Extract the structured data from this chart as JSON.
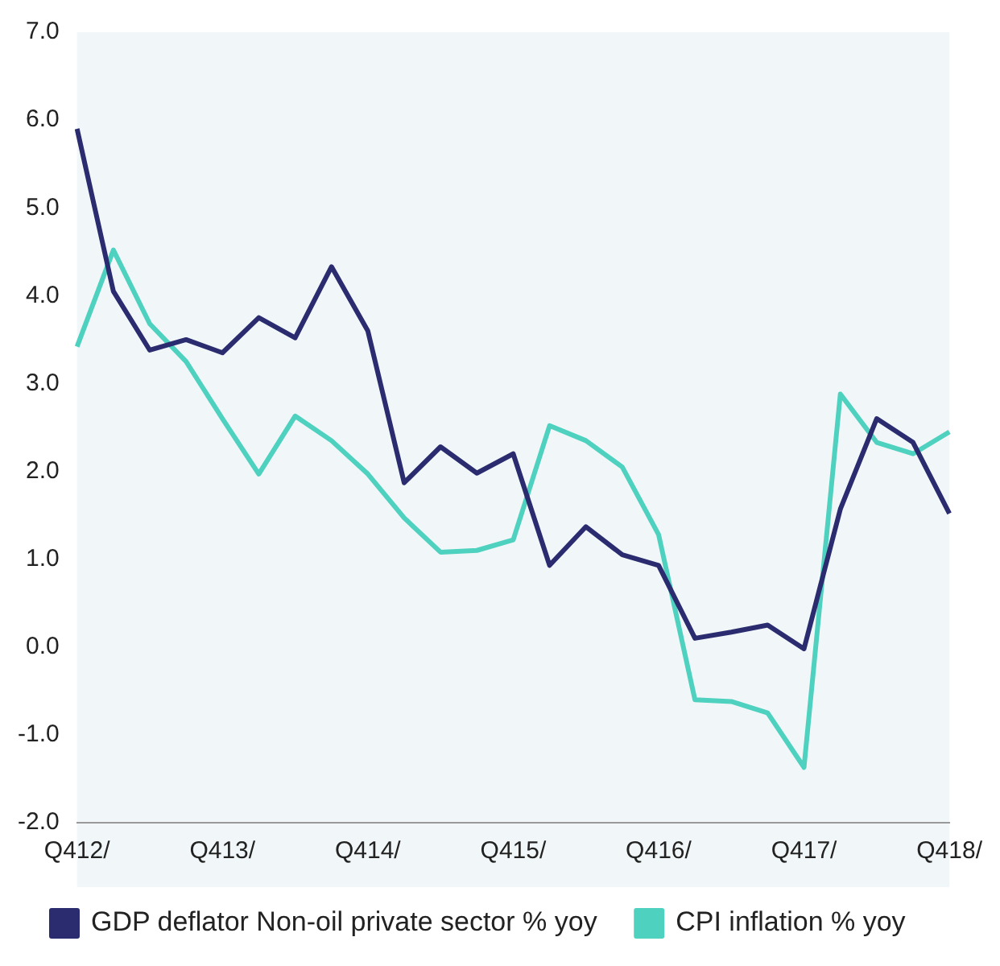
{
  "chart_data": {
    "type": "line",
    "categories": [
      "Q412/",
      null,
      null,
      null,
      "Q413/",
      null,
      null,
      null,
      "Q414/",
      null,
      null,
      null,
      "Q415/",
      null,
      null,
      null,
      "Q416/",
      null,
      null,
      null,
      "Q417/",
      null,
      null,
      null,
      "Q418/"
    ],
    "series": [
      {
        "name": "GDP deflator Non-oil private sector % yoy",
        "color": "#2b2b6f",
        "values": [
          5.9,
          4.05,
          3.38,
          3.5,
          3.35,
          3.75,
          3.52,
          4.33,
          3.6,
          1.87,
          2.28,
          1.98,
          2.2,
          0.93,
          1.37,
          1.05,
          0.93,
          0.1,
          0.17,
          0.25,
          -0.02,
          1.57,
          2.6,
          2.33,
          1.52
        ]
      },
      {
        "name": "CPI inflation % yoy",
        "color": "#4fd1c0",
        "values": [
          3.42,
          4.52,
          3.68,
          3.25,
          2.6,
          1.97,
          2.63,
          2.35,
          1.97,
          1.47,
          1.08,
          1.1,
          1.22,
          2.52,
          2.35,
          2.05,
          1.28,
          -0.6,
          -0.62,
          -0.75,
          -1.37,
          2.88,
          2.33,
          2.2,
          2.45
        ]
      }
    ],
    "ylim": [
      -2,
      7
    ],
    "yticks": [
      {
        "value": -2,
        "label": "-2.0"
      },
      {
        "value": -1,
        "label": "-1.0"
      },
      {
        "value": 0,
        "label": "0.0"
      },
      {
        "value": 1,
        "label": "1.0"
      },
      {
        "value": 2,
        "label": "2.0"
      },
      {
        "value": 3,
        "label": "3.0"
      },
      {
        "value": 4,
        "label": "4.0"
      },
      {
        "value": 5,
        "label": "5.0"
      },
      {
        "value": 6,
        "label": "6.0"
      },
      {
        "value": 7,
        "label": "7.0"
      }
    ],
    "grid": false,
    "legend": "bottom",
    "marker": "none",
    "line_style": "solid"
  }
}
